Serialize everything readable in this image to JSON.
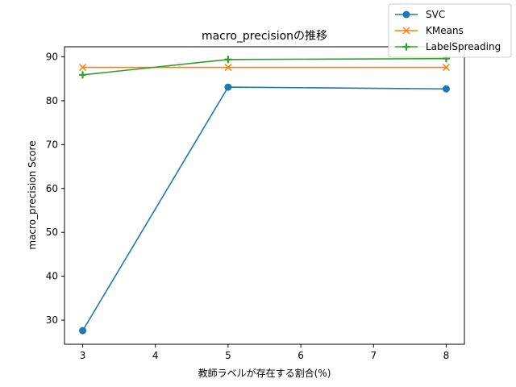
{
  "chart_data": {
    "type": "line",
    "title": "macro_precisionの推移",
    "xlabel": "教師ラベルが存在する割合(%)",
    "ylabel": "macro_precision Score",
    "x": [
      3,
      5,
      8
    ],
    "xlim": [
      2.75,
      8.25
    ],
    "ylim": [
      24.5,
      92.3
    ],
    "xticks": [
      3,
      4,
      5,
      6,
      7,
      8
    ],
    "yticks": [
      30,
      40,
      50,
      60,
      70,
      80,
      90
    ],
    "grid": false,
    "legend_position": "top-right",
    "series": [
      {
        "name": "SVC",
        "values": [
          27.6,
          83.1,
          82.7
        ],
        "color": "#1f77b4",
        "marker": "circle"
      },
      {
        "name": "KMeans",
        "values": [
          87.6,
          87.6,
          87.6
        ],
        "color": "#ff7f0e",
        "marker": "x"
      },
      {
        "name": "LabelSpreading",
        "values": [
          85.9,
          89.4,
          89.6
        ],
        "color": "#2ca02c",
        "marker": "plus"
      }
    ]
  }
}
